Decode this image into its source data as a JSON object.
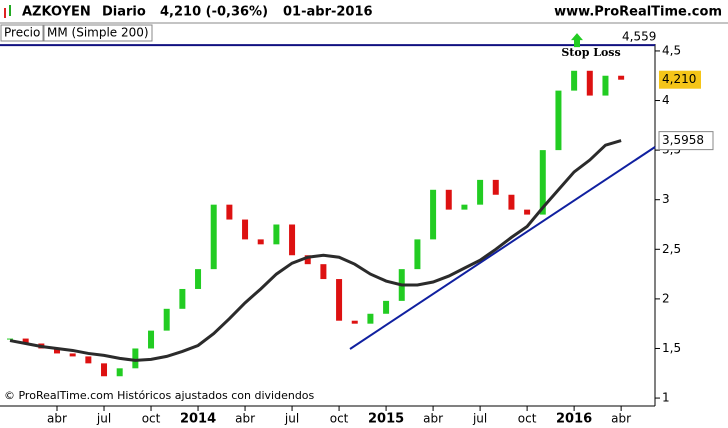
{
  "chart_data": {
    "type": "candlestick",
    "header": {
      "symbol": "AZKOYEN",
      "period": "Diario",
      "quote": "4,210 (-0,36%)",
      "date": "01-abr-2016",
      "site": "www.ProRealTime.com"
    },
    "footer": "© ProRealTime.com Históricos ajustados con dividendos",
    "categories": [
      null,
      null,
      null,
      "abr",
      null,
      null,
      "jul",
      null,
      null,
      "oct",
      null,
      null,
      "2014",
      null,
      null,
      "abr",
      null,
      null,
      "jul",
      null,
      null,
      "oct",
      null,
      null,
      "2015",
      null,
      null,
      "abr",
      null,
      null,
      "jul",
      null,
      null,
      "oct",
      null,
      null,
      "2016",
      null,
      null,
      "abr"
    ],
    "series": [
      {
        "name": "Precio",
        "color": "#22cc22",
        "down_color": "#dd1111",
        "values": [
          1.6,
          1.55,
          1.5,
          1.45,
          1.42,
          1.35,
          1.22,
          1.3,
          1.5,
          1.68,
          1.9,
          2.1,
          2.3,
          2.95,
          2.8,
          2.6,
          2.55,
          2.75,
          2.44,
          2.35,
          2.2,
          1.78,
          1.75,
          1.85,
          1.98,
          2.3,
          2.6,
          3.1,
          2.9,
          2.95,
          3.2,
          3.05,
          2.9,
          2.85,
          3.5,
          4.1,
          4.3,
          4.05,
          4.25,
          4.21
        ]
      },
      {
        "name": "MM (Simple 200)",
        "color": "#2b2b2b",
        "values": [
          1.58,
          1.55,
          1.52,
          1.5,
          1.48,
          1.45,
          1.43,
          1.4,
          1.38,
          1.39,
          1.42,
          1.47,
          1.53,
          1.65,
          1.8,
          1.96,
          2.1,
          2.25,
          2.36,
          2.42,
          2.44,
          2.42,
          2.35,
          2.25,
          2.18,
          2.14,
          2.14,
          2.17,
          2.23,
          2.31,
          2.39,
          2.5,
          2.62,
          2.73,
          2.92,
          3.1,
          3.28,
          3.4,
          3.55,
          3.5958
        ]
      }
    ],
    "ylim": [
      0.92,
      4.57
    ],
    "yticks": [
      1,
      {
        "value": 1.5,
        "label": "1,5"
      },
      2,
      {
        "value": 2.5,
        "label": "2,5"
      },
      3,
      {
        "value": 3.5,
        "label": "3,5"
      },
      4,
      {
        "value": 4.5,
        "label": "4,5"
      }
    ],
    "price_tag": {
      "value": 4.21,
      "label": "4,210"
    },
    "ma_tag": {
      "value": 3.5958,
      "label": "3,5958"
    },
    "stop_loss": {
      "value": 4.559,
      "label": "4,559",
      "text": "Stop Loss"
    }
  }
}
